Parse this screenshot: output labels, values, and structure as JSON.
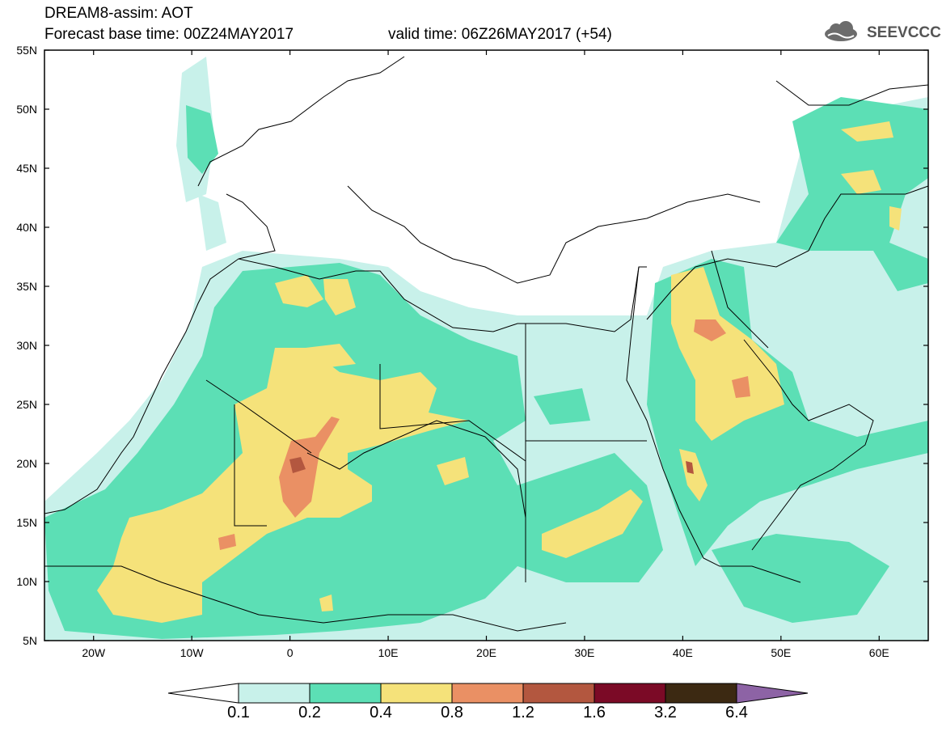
{
  "header": {
    "line1": "DREAM8-assim: AOT",
    "line2": "Forecast base time: 00Z24MAY2017",
    "valid": "valid time: 06Z26MAY2017 (+54)",
    "logo_text": "SEEVCCC"
  },
  "map": {
    "variable": "AOT",
    "lon_range": [
      -25,
      65
    ],
    "lat_range": [
      5,
      55
    ],
    "y_labels": [
      "55N",
      "50N",
      "45N",
      "40N",
      "35N",
      "30N",
      "25N",
      "20N",
      "15N",
      "10N",
      "5N"
    ],
    "x_labels": [
      "20W",
      "10W",
      "0",
      "10E",
      "20E",
      "30E",
      "40E",
      "50E",
      "60E"
    ]
  },
  "colorbar": {
    "levels": [
      "0.1",
      "0.2",
      "0.4",
      "0.8",
      "1.2",
      "1.6",
      "3.2",
      "6.4"
    ],
    "colors": [
      "#ffffff",
      "#c8f1ea",
      "#5cdfb5",
      "#f5e27a",
      "#ea9064",
      "#b3573f",
      "#7b0a26",
      "#3c2912",
      "#8d63a5"
    ]
  }
}
